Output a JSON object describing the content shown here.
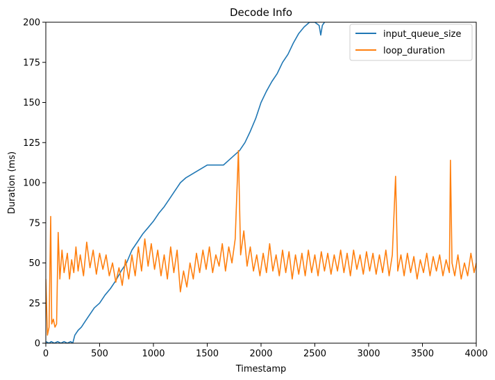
{
  "chart_data": {
    "type": "line",
    "title": "Decode Info",
    "xlabel": "Timestamp",
    "ylabel": "Duration (ms)",
    "xlim": [
      0,
      4000
    ],
    "ylim": [
      0,
      200
    ],
    "x_ticks": [
      0,
      500,
      1000,
      1500,
      2000,
      2500,
      3000,
      3500,
      4000
    ],
    "y_ticks": [
      0,
      25,
      50,
      75,
      100,
      125,
      150,
      175,
      200
    ],
    "grid": false,
    "legend_position": "top-right",
    "series": [
      {
        "name": "input_queue_size",
        "color": "#1f77b4",
        "points": [
          [
            0,
            1
          ],
          [
            30,
            0
          ],
          [
            50,
            1
          ],
          [
            80,
            0
          ],
          [
            110,
            1
          ],
          [
            140,
            0
          ],
          [
            170,
            1
          ],
          [
            200,
            0
          ],
          [
            230,
            1
          ],
          [
            250,
            0
          ],
          [
            270,
            5
          ],
          [
            300,
            8
          ],
          [
            330,
            10
          ],
          [
            370,
            14
          ],
          [
            400,
            17
          ],
          [
            450,
            22
          ],
          [
            500,
            25
          ],
          [
            550,
            30
          ],
          [
            600,
            34
          ],
          [
            650,
            39
          ],
          [
            700,
            45
          ],
          [
            750,
            50
          ],
          [
            800,
            58
          ],
          [
            850,
            63
          ],
          [
            900,
            68
          ],
          [
            950,
            72
          ],
          [
            1000,
            76
          ],
          [
            1050,
            81
          ],
          [
            1100,
            85
          ],
          [
            1150,
            90
          ],
          [
            1200,
            95
          ],
          [
            1250,
            100
          ],
          [
            1300,
            103
          ],
          [
            1350,
            105
          ],
          [
            1400,
            107
          ],
          [
            1450,
            109
          ],
          [
            1500,
            111
          ],
          [
            1550,
            111
          ],
          [
            1600,
            111
          ],
          [
            1650,
            111
          ],
          [
            1700,
            114
          ],
          [
            1750,
            117
          ],
          [
            1800,
            120
          ],
          [
            1850,
            125
          ],
          [
            1900,
            132
          ],
          [
            1950,
            140
          ],
          [
            2000,
            150
          ],
          [
            2050,
            157
          ],
          [
            2100,
            163
          ],
          [
            2150,
            168
          ],
          [
            2200,
            175
          ],
          [
            2250,
            180
          ],
          [
            2300,
            187
          ],
          [
            2350,
            193
          ],
          [
            2400,
            197
          ],
          [
            2450,
            200
          ],
          [
            2500,
            200
          ],
          [
            2540,
            198
          ],
          [
            2555,
            192
          ],
          [
            2570,
            198
          ],
          [
            2590,
            200
          ]
        ]
      },
      {
        "name": "loop_duration",
        "color": "#ff7f0e",
        "points": [
          [
            0,
            40
          ],
          [
            15,
            5
          ],
          [
            30,
            10
          ],
          [
            45,
            79
          ],
          [
            55,
            12
          ],
          [
            70,
            15
          ],
          [
            85,
            10
          ],
          [
            100,
            12
          ],
          [
            115,
            69
          ],
          [
            130,
            40
          ],
          [
            150,
            58
          ],
          [
            170,
            44
          ],
          [
            200,
            56
          ],
          [
            220,
            40
          ],
          [
            240,
            52
          ],
          [
            260,
            44
          ],
          [
            280,
            60
          ],
          [
            300,
            45
          ],
          [
            320,
            55
          ],
          [
            350,
            42
          ],
          [
            380,
            63
          ],
          [
            410,
            47
          ],
          [
            440,
            58
          ],
          [
            470,
            43
          ],
          [
            500,
            56
          ],
          [
            530,
            46
          ],
          [
            560,
            55
          ],
          [
            590,
            42
          ],
          [
            620,
            50
          ],
          [
            650,
            38
          ],
          [
            680,
            47
          ],
          [
            710,
            36
          ],
          [
            740,
            52
          ],
          [
            770,
            40
          ],
          [
            800,
            55
          ],
          [
            830,
            42
          ],
          [
            860,
            60
          ],
          [
            890,
            45
          ],
          [
            920,
            65
          ],
          [
            950,
            48
          ],
          [
            980,
            62
          ],
          [
            1010,
            46
          ],
          [
            1040,
            58
          ],
          [
            1070,
            42
          ],
          [
            1100,
            55
          ],
          [
            1130,
            40
          ],
          [
            1160,
            60
          ],
          [
            1190,
            44
          ],
          [
            1220,
            58
          ],
          [
            1250,
            32
          ],
          [
            1280,
            45
          ],
          [
            1310,
            35
          ],
          [
            1340,
            50
          ],
          [
            1370,
            40
          ],
          [
            1400,
            56
          ],
          [
            1430,
            44
          ],
          [
            1460,
            58
          ],
          [
            1490,
            46
          ],
          [
            1520,
            60
          ],
          [
            1550,
            44
          ],
          [
            1580,
            55
          ],
          [
            1610,
            48
          ],
          [
            1640,
            62
          ],
          [
            1670,
            45
          ],
          [
            1700,
            60
          ],
          [
            1730,
            50
          ],
          [
            1760,
            65
          ],
          [
            1790,
            120
          ],
          [
            1810,
            55
          ],
          [
            1840,
            70
          ],
          [
            1870,
            48
          ],
          [
            1900,
            60
          ],
          [
            1930,
            45
          ],
          [
            1960,
            55
          ],
          [
            1990,
            42
          ],
          [
            2020,
            56
          ],
          [
            2050,
            44
          ],
          [
            2080,
            62
          ],
          [
            2110,
            45
          ],
          [
            2140,
            55
          ],
          [
            2170,
            42
          ],
          [
            2200,
            58
          ],
          [
            2230,
            44
          ],
          [
            2260,
            57
          ],
          [
            2290,
            40
          ],
          [
            2320,
            55
          ],
          [
            2350,
            43
          ],
          [
            2380,
            56
          ],
          [
            2410,
            42
          ],
          [
            2440,
            58
          ],
          [
            2470,
            44
          ],
          [
            2500,
            55
          ],
          [
            2530,
            42
          ],
          [
            2560,
            57
          ],
          [
            2590,
            45
          ],
          [
            2620,
            56
          ],
          [
            2650,
            43
          ],
          [
            2680,
            55
          ],
          [
            2710,
            45
          ],
          [
            2740,
            58
          ],
          [
            2770,
            44
          ],
          [
            2800,
            56
          ],
          [
            2830,
            42
          ],
          [
            2860,
            58
          ],
          [
            2890,
            46
          ],
          [
            2920,
            55
          ],
          [
            2950,
            43
          ],
          [
            2980,
            57
          ],
          [
            3010,
            45
          ],
          [
            3040,
            56
          ],
          [
            3070,
            43
          ],
          [
            3100,
            55
          ],
          [
            3130,
            44
          ],
          [
            3160,
            58
          ],
          [
            3190,
            42
          ],
          [
            3220,
            55
          ],
          [
            3250,
            104
          ],
          [
            3270,
            45
          ],
          [
            3300,
            55
          ],
          [
            3330,
            42
          ],
          [
            3360,
            56
          ],
          [
            3390,
            44
          ],
          [
            3420,
            54
          ],
          [
            3450,
            40
          ],
          [
            3480,
            52
          ],
          [
            3510,
            44
          ],
          [
            3540,
            56
          ],
          [
            3570,
            42
          ],
          [
            3600,
            54
          ],
          [
            3630,
            45
          ],
          [
            3660,
            55
          ],
          [
            3690,
            42
          ],
          [
            3720,
            52
          ],
          [
            3750,
            44
          ],
          [
            3760,
            114
          ],
          [
            3775,
            50
          ],
          [
            3800,
            42
          ],
          [
            3830,
            55
          ],
          [
            3860,
            40
          ],
          [
            3890,
            50
          ],
          [
            3920,
            42
          ],
          [
            3950,
            56
          ],
          [
            3980,
            44
          ],
          [
            4000,
            50
          ]
        ]
      }
    ]
  }
}
